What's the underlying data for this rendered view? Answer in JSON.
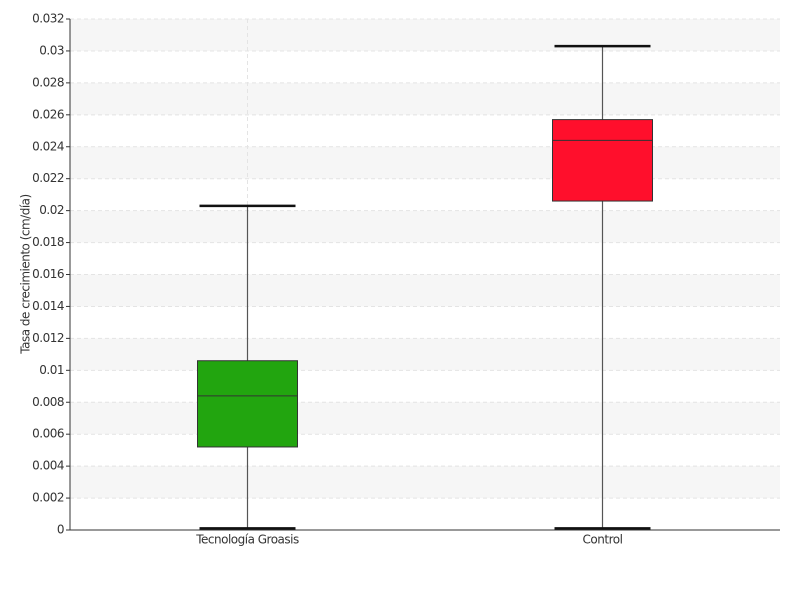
{
  "chart_data": {
    "type": "box",
    "y_label": "Tasa de crecimiento (cm/día)",
    "categories": [
      "Tecnología Groasis",
      "Control"
    ],
    "boxes": [
      {
        "min": 0.0001,
        "q1": 0.0052,
        "median": 0.0084,
        "q3": 0.0106,
        "max": 0.0203,
        "color": "#22a50f"
      },
      {
        "min": 0.0001,
        "q1": 0.0206,
        "median": 0.0244,
        "q3": 0.0257,
        "max": 0.0303,
        "color": "#ff0f2c"
      }
    ],
    "ylim": [
      0,
      0.032
    ],
    "yticks": [
      0,
      0.002,
      0.004,
      0.006,
      0.008,
      0.01,
      0.012,
      0.014,
      0.016,
      0.018,
      0.02,
      0.022,
      0.024,
      0.026,
      0.028,
      0.03,
      0.032
    ],
    "grid": true
  }
}
